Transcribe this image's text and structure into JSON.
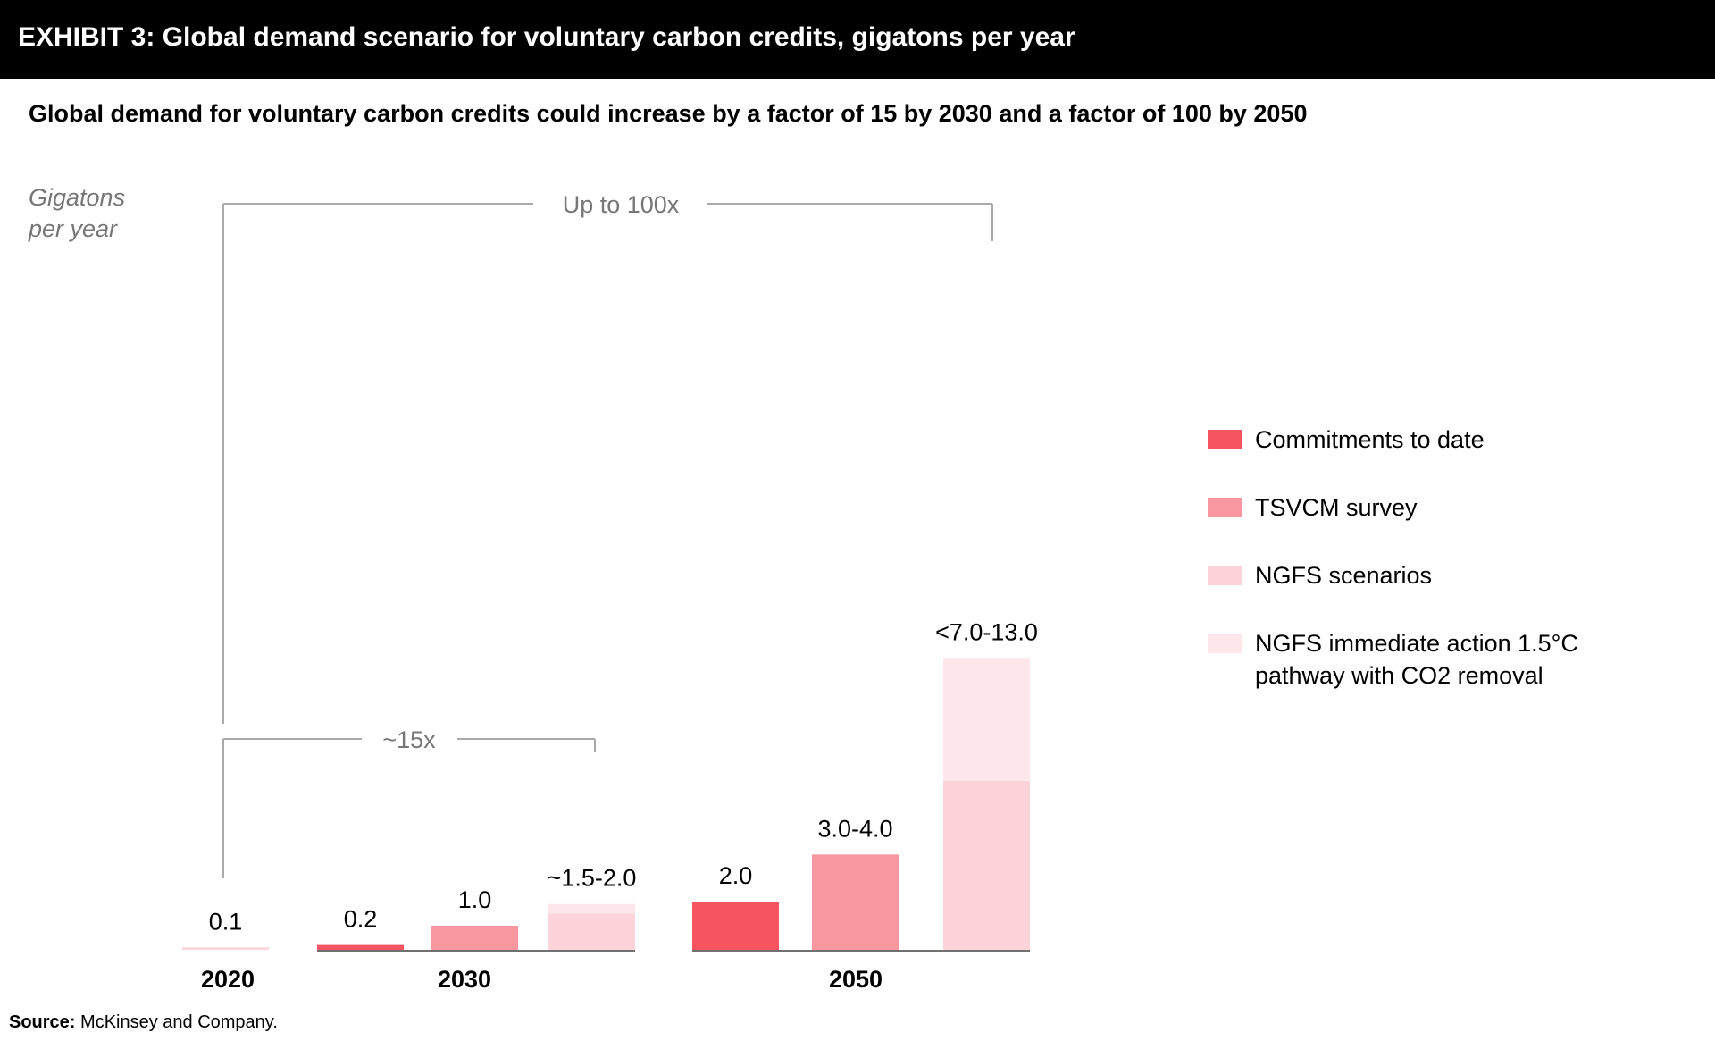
{
  "header": {
    "title": "EXHIBIT 3: Global demand scenario for voluntary carbon credits, gigatons per year"
  },
  "subtitle": "Global demand for voluntary carbon credits could increase by a factor of 15 by 2030 and a factor of 100 by 2050",
  "source": {
    "label": "Source:",
    "text": "McKinsey and Company."
  },
  "chart_data": {
    "type": "bar",
    "ylabel": [
      "Gigatons",
      "per year"
    ],
    "groups": [
      "2020",
      "2030",
      "2050"
    ],
    "legend": [
      {
        "name": "Commitments to date",
        "color": "#f75462"
      },
      {
        "name": "TSVCM survey",
        "color": "#f8979f"
      },
      {
        "name": "NGFS scenarios",
        "color": "#fcd4d9"
      },
      {
        "name": "NGFS immediate action 1.5°C pathway with CO2 removal",
        "color": "#fde7ea"
      }
    ],
    "legend_placement": "right",
    "bars": [
      {
        "group": "2020",
        "label": "0.1",
        "segments": [
          {
            "series": "NGFS scenarios",
            "value": 0.1
          }
        ]
      },
      {
        "group": "2030",
        "label": "0.2",
        "segments": [
          {
            "series": "Commitments to date",
            "value": 0.2
          }
        ]
      },
      {
        "group": "2030",
        "label": "1.0",
        "segments": [
          {
            "series": "TSVCM survey",
            "value": 1.0
          }
        ]
      },
      {
        "group": "2030",
        "label": "~1.5-2.0",
        "segments": [
          {
            "series": "NGFS scenarios",
            "value": 1.5
          },
          {
            "series": "NGFS immediate action 1.5°C pathway with CO2 removal",
            "value": 0.4
          }
        ]
      },
      {
        "group": "2050",
        "label": "2.0",
        "segments": [
          {
            "series": "Commitments to date",
            "value": 2.0
          }
        ]
      },
      {
        "group": "2050",
        "label": "3.0-4.0",
        "segments": [
          {
            "series": "TSVCM survey",
            "value": 3.95
          }
        ]
      },
      {
        "group": "2050",
        "label": "<7.0-13.0",
        "segments": [
          {
            "series": "NGFS scenarios",
            "value": 7.0
          },
          {
            "series": "NGFS immediate action 1.5°C pathway with CO2 removal",
            "value": 5.1
          }
        ]
      }
    ],
    "brackets": [
      {
        "label": "Up to 100x"
      },
      {
        "label": "~15x"
      }
    ]
  }
}
